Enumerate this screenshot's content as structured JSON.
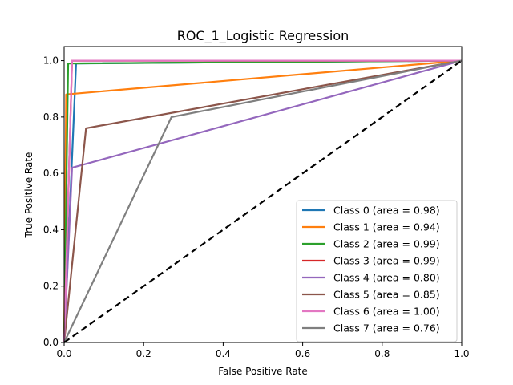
{
  "chart_data": {
    "type": "line",
    "title": "ROC_1_Logistic Regression",
    "xlabel": "False Positive Rate",
    "ylabel": "True Positive Rate",
    "xlim": [
      0,
      1
    ],
    "ylim": [
      0,
      1.05
    ],
    "xticks": [
      "0.0",
      "0.2",
      "0.4",
      "0.6",
      "0.8",
      "1.0"
    ],
    "yticks": [
      "0.0",
      "0.2",
      "0.4",
      "0.6",
      "0.8",
      "1.0"
    ],
    "grid": false,
    "legend_position": "lower-right",
    "series": [
      {
        "name": "Class 0 (area = 0.98)",
        "color": "#1f77b4",
        "x": [
          0,
          0.03,
          1
        ],
        "y": [
          0,
          0.99,
          1
        ]
      },
      {
        "name": "Class 1 (area = 0.94)",
        "color": "#ff7f0e",
        "x": [
          0,
          0.005,
          1
        ],
        "y": [
          0,
          0.88,
          1
        ]
      },
      {
        "name": "Class 2 (area = 0.99)",
        "color": "#2ca02c",
        "x": [
          0,
          0.01,
          1
        ],
        "y": [
          0,
          0.99,
          1
        ]
      },
      {
        "name": "Class 3 (area = 0.99)",
        "color": "#d62728",
        "x": [
          0,
          0.02,
          1
        ],
        "y": [
          0,
          1.0,
          1
        ]
      },
      {
        "name": "Class 4 (area = 0.80)",
        "color": "#9467bd",
        "x": [
          0,
          0.02,
          1
        ],
        "y": [
          0,
          0.62,
          1
        ]
      },
      {
        "name": "Class 5 (area = 0.85)",
        "color": "#8c564b",
        "x": [
          0,
          0.055,
          1
        ],
        "y": [
          0,
          0.76,
          1
        ]
      },
      {
        "name": "Class 6 (area = 1.00)",
        "color": "#e377c2",
        "x": [
          0,
          0.02,
          1
        ],
        "y": [
          0,
          1.0,
          1
        ]
      },
      {
        "name": "Class 7 (area = 0.76)",
        "color": "#7f7f7f",
        "x": [
          0,
          0.27,
          1
        ],
        "y": [
          0,
          0.8,
          1
        ]
      }
    ],
    "reference_line": {
      "x": [
        0,
        1
      ],
      "y": [
        0,
        1
      ],
      "color": "#000000",
      "style": "dashed"
    }
  }
}
